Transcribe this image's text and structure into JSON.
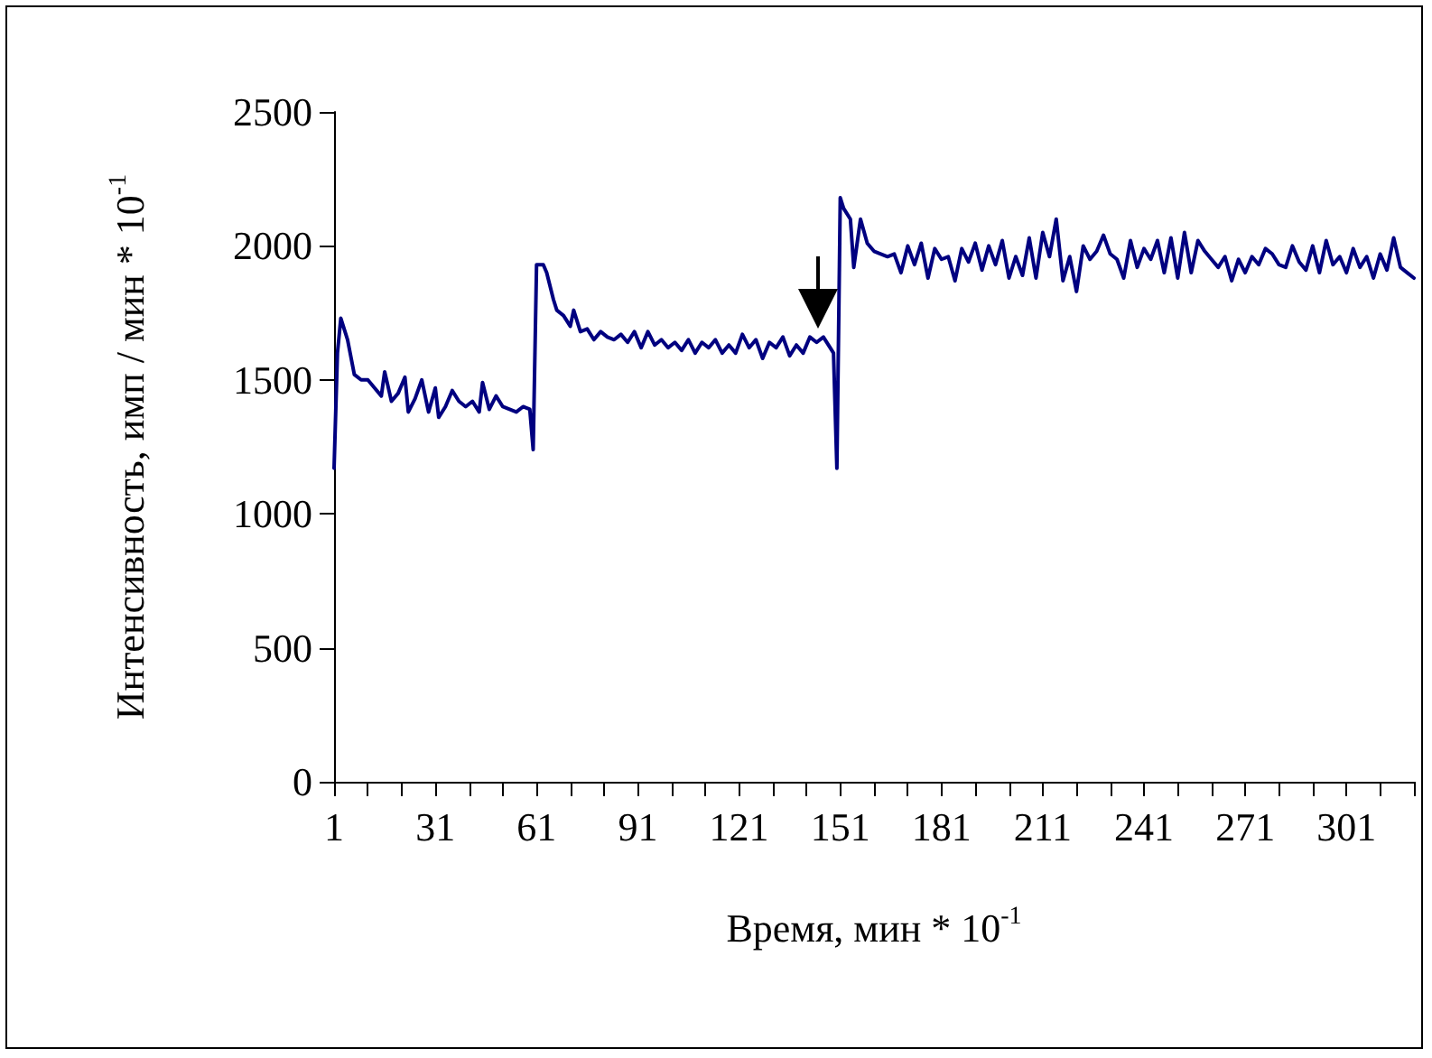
{
  "chart_data": {
    "type": "line",
    "xlabel": "Время, мин * 10$^{-1}$",
    "ylabel": "Интенсивность, имп / мин * 10$^{-1}$",
    "xlim": [
      1,
      321
    ],
    "xticks": [
      1,
      {
        "value": 11,
        "label": null
      },
      {
        "value": 21,
        "label": null
      },
      31,
      {
        "value": 41,
        "label": null
      },
      {
        "value": 51,
        "label": null
      },
      61,
      {
        "value": 71,
        "label": null
      },
      {
        "value": 81,
        "label": null
      },
      91,
      {
        "value": 101,
        "label": null
      },
      {
        "value": 111,
        "label": null
      },
      121,
      {
        "value": 131,
        "label": null
      },
      {
        "value": 141,
        "label": null
      },
      151,
      {
        "value": 161,
        "label": null
      },
      {
        "value": 171,
        "label": null
      },
      181,
      {
        "value": 191,
        "label": null
      },
      {
        "value": 201,
        "label": null
      },
      211,
      {
        "value": 221,
        "label": null
      },
      {
        "value": 231,
        "label": null
      },
      241,
      {
        "value": 251,
        "label": null
      },
      {
        "value": 261,
        "label": null
      },
      271,
      {
        "value": 281,
        "label": null
      },
      {
        "value": 291,
        "label": null
      },
      301,
      {
        "value": 311,
        "label": null
      },
      {
        "value": 321,
        "label": null
      }
    ],
    "ylim": [
      0,
      2500
    ],
    "yticks": [
      0,
      500,
      1000,
      1500,
      2000,
      2500
    ],
    "grid": false,
    "marker": "none",
    "line_style": "solid",
    "x": [
      1,
      2,
      3,
      5,
      7,
      9,
      11,
      13,
      15,
      16,
      18,
      20,
      22,
      23,
      25,
      27,
      29,
      31,
      32,
      34,
      36,
      38,
      40,
      42,
      44,
      45,
      47,
      49,
      51,
      53,
      55,
      57,
      59,
      60,
      61,
      63,
      64,
      66,
      67,
      69,
      71,
      72,
      74,
      76,
      78,
      80,
      82,
      84,
      86,
      88,
      90,
      92,
      94,
      96,
      98,
      100,
      102,
      104,
      106,
      108,
      110,
      112,
      114,
      116,
      118,
      120,
      122,
      124,
      126,
      128,
      130,
      132,
      134,
      136,
      138,
      140,
      142,
      144,
      146,
      148,
      149,
      150,
      151,
      152,
      154,
      155,
      157,
      159,
      161,
      163,
      165,
      167,
      169,
      171,
      173,
      175,
      177,
      179,
      181,
      183,
      185,
      187,
      189,
      191,
      193,
      195,
      197,
      199,
      201,
      203,
      205,
      207,
      209,
      211,
      213,
      215,
      217,
      219,
      221,
      223,
      225,
      227,
      229,
      231,
      233,
      235,
      237,
      239,
      241,
      243,
      245,
      247,
      249,
      251,
      253,
      255,
      257,
      259,
      261,
      263,
      265,
      267,
      269,
      271,
      273,
      275,
      277,
      279,
      281,
      283,
      285,
      287,
      289,
      291,
      293,
      295,
      297,
      299,
      301,
      303,
      305,
      307,
      309,
      311,
      313,
      315,
      317,
      319,
      321
    ],
    "series": [
      {
        "color": "#000080",
        "values": [
          1170,
          1600,
          1730,
          1650,
          1520,
          1500,
          1500,
          1470,
          1440,
          1530,
          1420,
          1450,
          1510,
          1380,
          1430,
          1500,
          1380,
          1470,
          1360,
          1400,
          1460,
          1420,
          1400,
          1420,
          1380,
          1490,
          1390,
          1440,
          1400,
          1390,
          1380,
          1400,
          1390,
          1240,
          1930,
          1930,
          1900,
          1800,
          1760,
          1740,
          1700,
          1760,
          1680,
          1690,
          1650,
          1680,
          1660,
          1650,
          1670,
          1640,
          1680,
          1620,
          1680,
          1630,
          1650,
          1620,
          1640,
          1610,
          1650,
          1600,
          1640,
          1620,
          1650,
          1600,
          1630,
          1600,
          1670,
          1620,
          1650,
          1580,
          1640,
          1620,
          1660,
          1590,
          1630,
          1600,
          1660,
          1640,
          1660,
          1620,
          1600,
          1170,
          2180,
          2140,
          2100,
          1920,
          2100,
          2010,
          1980,
          1970,
          1960,
          1970,
          1900,
          2000,
          1930,
          2010,
          1880,
          1990,
          1950,
          1960,
          1870,
          1990,
          1940,
          2010,
          1910,
          2000,
          1930,
          2020,
          1880,
          1960,
          1890,
          2030,
          1880,
          2050,
          1960,
          2100,
          1870,
          1960,
          1830,
          2000,
          1950,
          1980,
          2040,
          1970,
          1950,
          1880,
          2020,
          1920,
          1990,
          1950,
          2020,
          1900,
          2030,
          1880,
          2050,
          1900,
          2020,
          1980,
          1950,
          1920,
          1960,
          1870,
          1950,
          1900,
          1960,
          1930,
          1990,
          1970,
          1930,
          1920,
          2000,
          1940,
          1910,
          2000,
          1900,
          2020,
          1930,
          1960,
          1900,
          1990,
          1920,
          1960,
          1880,
          1970,
          1910,
          2030,
          1920,
          1900,
          1880
        ]
      }
    ]
  }
}
